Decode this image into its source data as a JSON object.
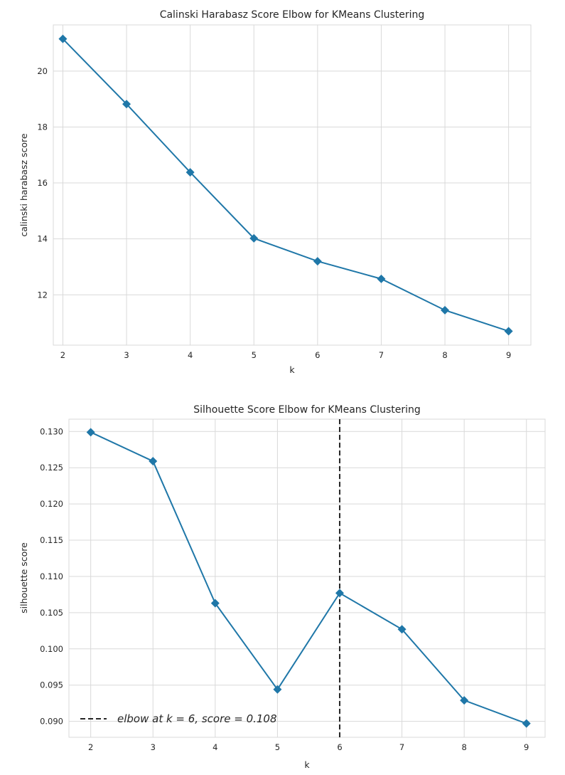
{
  "chart_data": [
    {
      "type": "line",
      "title": "Calinski Harabasz Score Elbow for KMeans Clustering",
      "xlabel": "k",
      "ylabel": "calinski harabasz score",
      "x": [
        2,
        3,
        4,
        5,
        6,
        7,
        8,
        9
      ],
      "y": [
        21.15,
        18.82,
        16.38,
        14.02,
        13.2,
        12.57,
        11.45,
        10.7
      ],
      "xlim": [
        1.85,
        9.35
      ],
      "ylim": [
        10.2,
        21.65
      ],
      "xticks": [
        2,
        3,
        4,
        5,
        6,
        7,
        8,
        9
      ],
      "yticks": [
        12,
        14,
        16,
        18,
        20
      ],
      "ytick_labels": [
        "12",
        "14",
        "16",
        "18",
        "20"
      ],
      "grid": true,
      "line_color": "#1f77a8",
      "marker": "diamond"
    },
    {
      "type": "line",
      "title": "Silhouette Score Elbow for KMeans Clustering",
      "xlabel": "k",
      "ylabel": "silhouette score",
      "x": [
        2,
        3,
        4,
        5,
        6,
        7,
        8,
        9
      ],
      "y": [
        0.1299,
        0.1259,
        0.1063,
        0.0944,
        0.1077,
        0.1027,
        0.0929,
        0.0897
      ],
      "xlim": [
        1.65,
        9.3
      ],
      "ylim": [
        0.0878,
        0.1317
      ],
      "xticks": [
        2,
        3,
        4,
        5,
        6,
        7,
        8,
        9
      ],
      "yticks": [
        0.09,
        0.095,
        0.1,
        0.105,
        0.11,
        0.115,
        0.12,
        0.125,
        0.13
      ],
      "ytick_labels": [
        "0.090",
        "0.095",
        "0.100",
        "0.105",
        "0.110",
        "0.115",
        "0.120",
        "0.125",
        "0.130"
      ],
      "grid": true,
      "line_color": "#1f77a8",
      "marker": "diamond",
      "elbow": {
        "k": 6,
        "line_color": "#262626",
        "style": "dashed"
      },
      "legend": {
        "label": "elbow at k = 6, score = 0.108",
        "placement": "lower-left"
      }
    }
  ]
}
